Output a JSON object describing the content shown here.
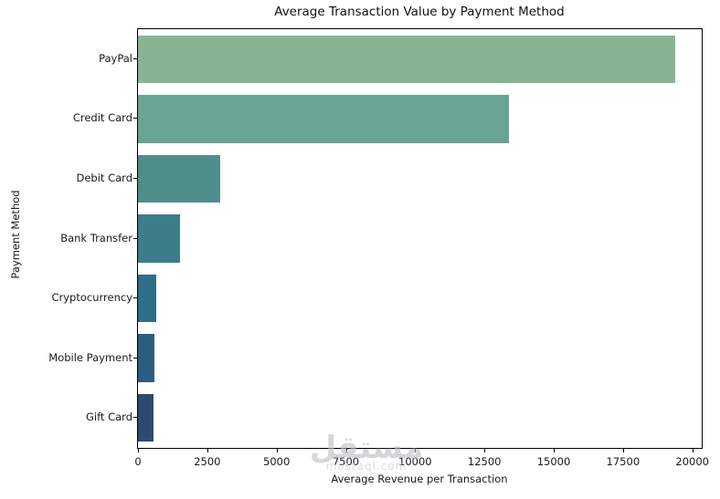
{
  "chart_data": {
    "type": "bar",
    "orientation": "horizontal",
    "title": "Average Transaction Value by Payment Method",
    "xlabel": "Average Revenue per Transaction",
    "ylabel": "Payment Method",
    "categories": [
      "PayPal",
      "Credit Card",
      "Debit Card",
      "Bank Transfer",
      "Cryptocurrency",
      "Mobile Payment",
      "Gift Card"
    ],
    "values": [
      19400,
      13400,
      2970,
      1530,
      670,
      600,
      570
    ],
    "bar_colors": [
      "#87b594",
      "#69a392",
      "#4f8e8b",
      "#3d7e8a",
      "#2f6e87",
      "#2d5d7e",
      "#2e4a72"
    ],
    "xlim": [
      0,
      20340
    ],
    "xticks": [
      0,
      2500,
      5000,
      7500,
      10000,
      12500,
      15000,
      17500,
      20000
    ],
    "xtick_labels": [
      "0",
      "2500",
      "5000",
      "7500",
      "10000",
      "12500",
      "15000",
      "17500",
      "20000"
    ],
    "grid": false,
    "legend": "none"
  },
  "watermark": {
    "text": "مستقل",
    "subtext": "mostaql.com"
  }
}
